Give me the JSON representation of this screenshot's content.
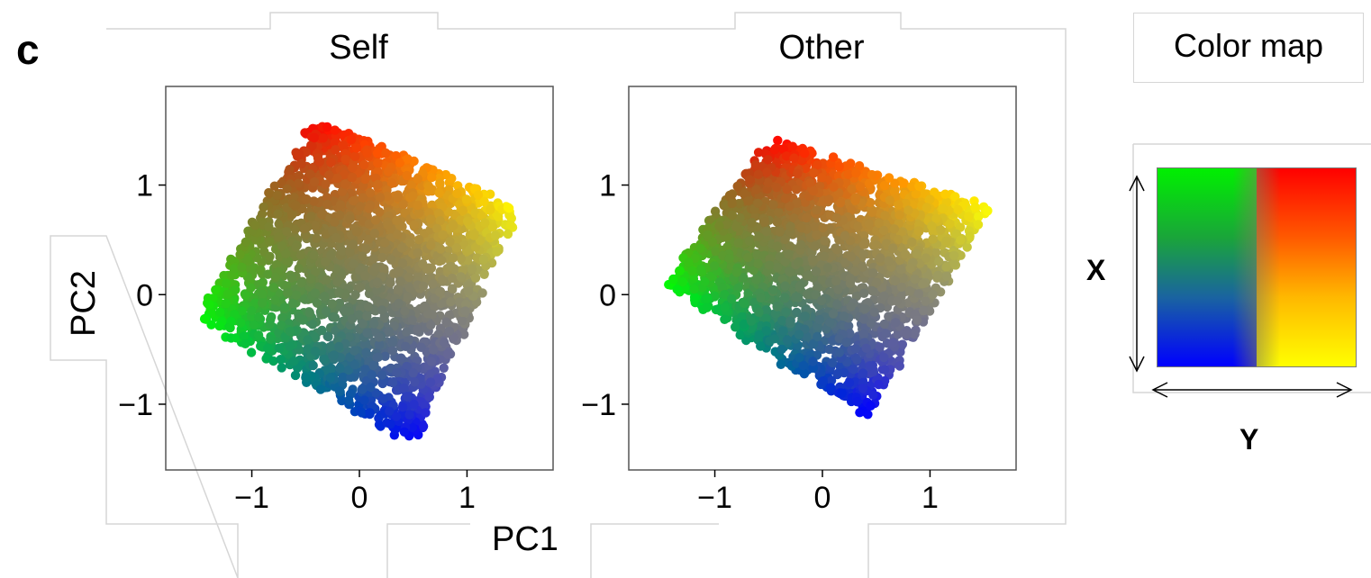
{
  "panel_label": "c",
  "colormap": {
    "title": "Color map",
    "x_label": "X",
    "y_label": "Y",
    "corner_colors": {
      "top_left": "#00ff00",
      "top_right": "#ff0000",
      "bottom_left": "#0000ff",
      "bottom_right": "#ffff00"
    }
  },
  "chart_data": [
    {
      "type": "scatter",
      "title": "Self",
      "xlabel": "PC1",
      "ylabel": "PC2",
      "xlim": [
        -1.8,
        1.8
      ],
      "ylim": [
        -1.6,
        1.9
      ],
      "xticks": [
        -1,
        0,
        1
      ],
      "yticks": [
        -1,
        0,
        1
      ],
      "x_tick_labels": [
        "−1",
        "0",
        "1"
      ],
      "y_tick_labels": [
        "−1",
        "0",
        "1"
      ],
      "grid": false,
      "point_cloud": {
        "corners": {
          "green": [
            -1.5,
            -0.2
          ],
          "red": [
            -0.4,
            1.6
          ],
          "yellow": [
            1.5,
            0.8
          ],
          "blue": [
            0.5,
            -1.35
          ]
        }
      }
    },
    {
      "type": "scatter",
      "title": "Other",
      "xlabel": "PC1",
      "ylabel": "PC2",
      "xlim": [
        -1.8,
        1.8
      ],
      "ylim": [
        -1.6,
        1.9
      ],
      "xticks": [
        -1,
        0,
        1
      ],
      "yticks": [
        -1,
        0,
        1
      ],
      "x_tick_labels": [
        "−1",
        "0",
        "1"
      ],
      "y_tick_labels": [
        "−1",
        "0",
        "1"
      ],
      "grid": false,
      "point_cloud": {
        "corners": {
          "green": [
            -1.45,
            0.1
          ],
          "red": [
            -0.5,
            1.4
          ],
          "yellow": [
            1.55,
            0.8
          ],
          "blue": [
            0.4,
            -1.1
          ]
        }
      }
    }
  ]
}
